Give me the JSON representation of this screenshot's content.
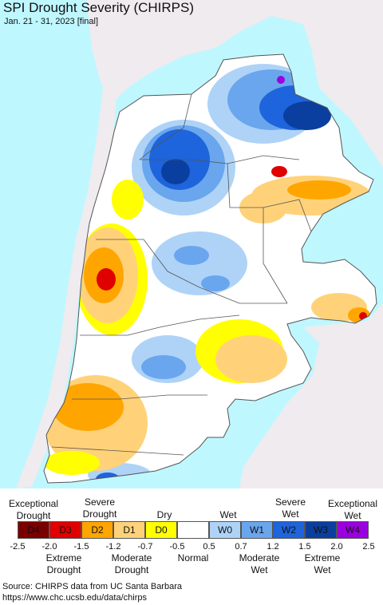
{
  "header": {
    "title": "SPI Drought Severity (CHIRPS)",
    "subtitle": "Jan. 21 - 31, 2023 [final]"
  },
  "legend": {
    "top_labels": [
      {
        "id": "exceptional-drought",
        "line1": "Exceptional",
        "line2": "Drought"
      },
      {
        "id": "severe-drought",
        "line1": "Severe",
        "line2": "Drought"
      },
      {
        "id": "dry",
        "line1": "Dry",
        "line2": ""
      },
      {
        "id": "wet",
        "line1": "Wet",
        "line2": ""
      },
      {
        "id": "severe-wet",
        "line1": "Severe",
        "line2": "Wet"
      },
      {
        "id": "exceptional-wet",
        "line1": "Exceptional",
        "line2": "Wet"
      }
    ],
    "categories": [
      {
        "code": "D4",
        "color": "#7a0000"
      },
      {
        "code": "D3",
        "color": "#e00000"
      },
      {
        "code": "D2",
        "color": "#ffa500"
      },
      {
        "code": "D1",
        "color": "#ffd27a"
      },
      {
        "code": "D0",
        "color": "#ffff00"
      },
      {
        "code": "",
        "color": "#ffffff"
      },
      {
        "code": "W0",
        "color": "#aed3f7"
      },
      {
        "code": "W1",
        "color": "#6aa6ee"
      },
      {
        "code": "W2",
        "color": "#1e64dc"
      },
      {
        "code": "W3",
        "color": "#0a3fa0"
      },
      {
        "code": "W4",
        "color": "#9b00e0"
      }
    ],
    "ticks": [
      "-2.5",
      "-2.0",
      "-1.5",
      "-1.2",
      "-0.7",
      "-0.5",
      "0.5",
      "0.7",
      "1.2",
      "1.5",
      "2.0",
      "2.5"
    ],
    "bottom_labels": [
      {
        "id": "extreme-drought",
        "line1": "Extreme",
        "line2": "Drought"
      },
      {
        "id": "moderate-drought",
        "line1": "Moderate",
        "line2": "Drought"
      },
      {
        "id": "normal",
        "line1": "Normal",
        "line2": ""
      },
      {
        "id": "moderate-wet",
        "line1": "Moderate",
        "line2": "Wet"
      },
      {
        "id": "extreme-wet",
        "line1": "Extreme",
        "line2": "Wet"
      }
    ]
  },
  "source": {
    "line1": "Source: CHIRPS data from UC Santa Barbara",
    "line2": "https://www.chc.ucsb.edu/data/chirps"
  },
  "colors": {
    "ocean": "#bff7ff",
    "outside_land": "#efebef",
    "border": "#555555"
  }
}
